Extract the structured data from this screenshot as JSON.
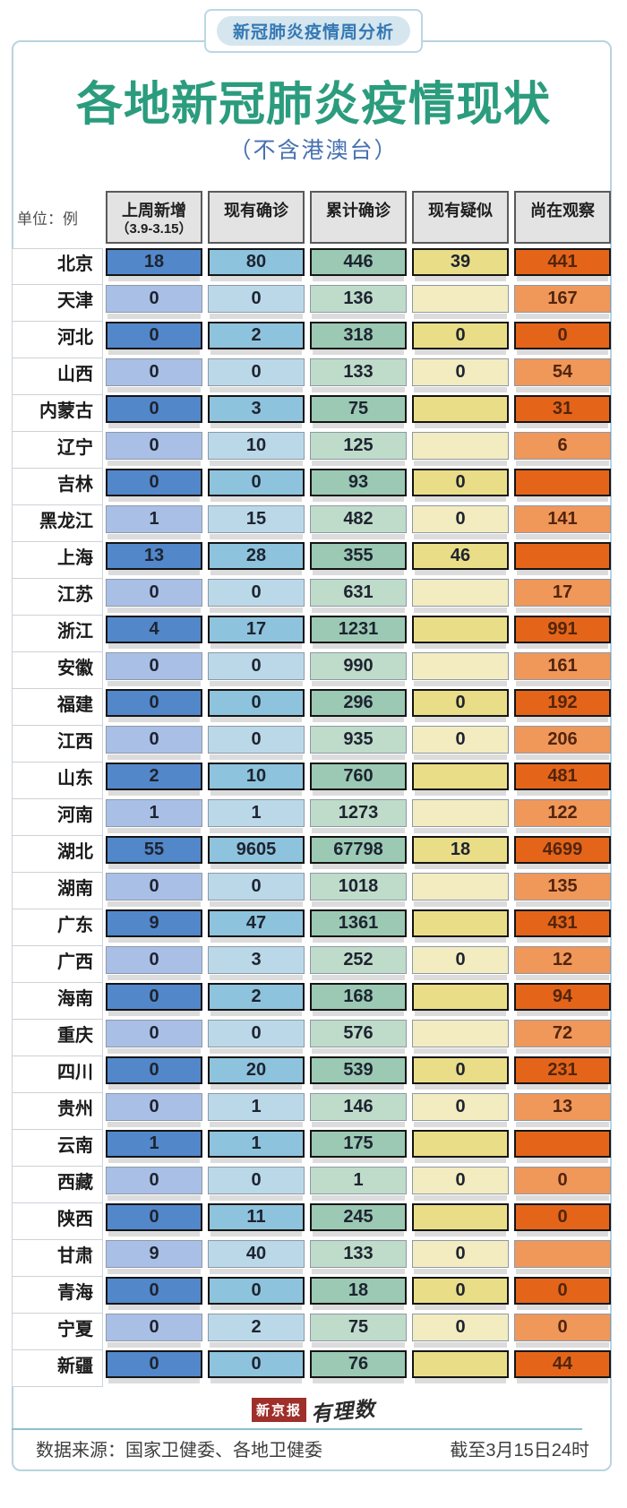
{
  "badge": "新冠肺炎疫情周分析",
  "title": "各地新冠肺炎疫情现状",
  "subtitle": "（不含港澳台）",
  "unit_label": "单位：例",
  "table": {
    "columns": [
      {
        "label": "上周新增",
        "sub": "（3.9-3.15）"
      },
      {
        "label": "现有确诊"
      },
      {
        "label": "累计确诊"
      },
      {
        "label": "现有疑似"
      },
      {
        "label": "尚在观察"
      }
    ],
    "rows": [
      {
        "region": "北京",
        "values": [
          18,
          80,
          446,
          39,
          441
        ]
      },
      {
        "region": "天津",
        "values": [
          0,
          0,
          136,
          null,
          167
        ]
      },
      {
        "region": "河北",
        "values": [
          0,
          2,
          318,
          0,
          0
        ]
      },
      {
        "region": "山西",
        "values": [
          0,
          0,
          133,
          0,
          54
        ]
      },
      {
        "region": "内蒙古",
        "values": [
          0,
          3,
          75,
          null,
          31
        ]
      },
      {
        "region": "辽宁",
        "values": [
          0,
          10,
          125,
          null,
          6
        ]
      },
      {
        "region": "吉林",
        "values": [
          0,
          0,
          93,
          0,
          null
        ]
      },
      {
        "region": "黑龙江",
        "values": [
          1,
          15,
          482,
          0,
          141
        ]
      },
      {
        "region": "上海",
        "values": [
          13,
          28,
          355,
          46,
          null
        ]
      },
      {
        "region": "江苏",
        "values": [
          0,
          0,
          631,
          null,
          17
        ]
      },
      {
        "region": "浙江",
        "values": [
          4,
          17,
          1231,
          null,
          991
        ]
      },
      {
        "region": "安徽",
        "values": [
          0,
          0,
          990,
          null,
          161
        ]
      },
      {
        "region": "福建",
        "values": [
          0,
          0,
          296,
          0,
          192
        ]
      },
      {
        "region": "江西",
        "values": [
          0,
          0,
          935,
          0,
          206
        ]
      },
      {
        "region": "山东",
        "values": [
          2,
          10,
          760,
          null,
          481
        ]
      },
      {
        "region": "河南",
        "values": [
          1,
          1,
          1273,
          null,
          122
        ]
      },
      {
        "region": "湖北",
        "values": [
          55,
          9605,
          67798,
          18,
          4699
        ]
      },
      {
        "region": "湖南",
        "values": [
          0,
          0,
          1018,
          null,
          135
        ]
      },
      {
        "region": "广东",
        "values": [
          9,
          47,
          1361,
          null,
          431
        ]
      },
      {
        "region": "广西",
        "values": [
          0,
          3,
          252,
          0,
          12
        ]
      },
      {
        "region": "海南",
        "values": [
          0,
          2,
          168,
          null,
          94
        ]
      },
      {
        "region": "重庆",
        "values": [
          0,
          0,
          576,
          null,
          72
        ]
      },
      {
        "region": "四川",
        "values": [
          0,
          20,
          539,
          0,
          231
        ]
      },
      {
        "region": "贵州",
        "values": [
          0,
          1,
          146,
          0,
          13
        ]
      },
      {
        "region": "云南",
        "values": [
          1,
          1,
          175,
          null,
          null
        ]
      },
      {
        "region": "西藏",
        "values": [
          0,
          0,
          1,
          0,
          0
        ]
      },
      {
        "region": "陕西",
        "values": [
          0,
          11,
          245,
          null,
          0
        ]
      },
      {
        "region": "甘肃",
        "values": [
          9,
          40,
          133,
          0,
          null
        ]
      },
      {
        "region": "青海",
        "values": [
          0,
          0,
          18,
          0,
          0
        ]
      },
      {
        "region": "宁夏",
        "values": [
          0,
          2,
          75,
          0,
          0
        ]
      },
      {
        "region": "新疆",
        "values": [
          0,
          0,
          76,
          null,
          44
        ]
      }
    ]
  },
  "colors": {
    "dark": [
      "#5287ca",
      "#8ec3dd",
      "#9bc9b4",
      "#e9dd88",
      "#e4651a"
    ],
    "light": [
      "#a9bfe6",
      "#bad8e8",
      "#bfdbca",
      "#f3ecc1",
      "#f0975a"
    ],
    "title_green": "#2b9c7d",
    "subtitle_blue": "#4671b0",
    "badge_blue": "#3478b4",
    "frame_border": "#b9d3df",
    "logo_red": "#9e2f2a"
  },
  "footer": {
    "logo_primary": "新京报",
    "logo_secondary": "有理数",
    "source": "数据来源：国家卫健委、各地卫健委",
    "asof": "截至3月15日24时"
  },
  "chart_data": {
    "type": "table",
    "title": "各地新冠肺炎疫情现状（不含港澳台）",
    "unit": "例",
    "columns": [
      "上周新增（3.9-3.15）",
      "现有确诊",
      "累计确诊",
      "现有疑似",
      "尚在观察"
    ],
    "categories": [
      "北京",
      "天津",
      "河北",
      "山西",
      "内蒙古",
      "辽宁",
      "吉林",
      "黑龙江",
      "上海",
      "江苏",
      "浙江",
      "安徽",
      "福建",
      "江西",
      "山东",
      "河南",
      "湖北",
      "湖南",
      "广东",
      "广西",
      "海南",
      "重庆",
      "四川",
      "贵州",
      "云南",
      "西藏",
      "陕西",
      "甘肃",
      "青海",
      "宁夏",
      "新疆"
    ],
    "series": [
      {
        "name": "上周新增（3.9-3.15）",
        "values": [
          18,
          0,
          0,
          0,
          0,
          0,
          0,
          1,
          13,
          0,
          4,
          0,
          0,
          0,
          2,
          1,
          55,
          0,
          9,
          0,
          0,
          0,
          0,
          0,
          1,
          0,
          0,
          9,
          0,
          0,
          0
        ]
      },
      {
        "name": "现有确诊",
        "values": [
          80,
          0,
          2,
          0,
          3,
          10,
          0,
          15,
          28,
          0,
          17,
          0,
          0,
          0,
          10,
          1,
          9605,
          0,
          47,
          3,
          2,
          0,
          20,
          1,
          1,
          0,
          11,
          40,
          0,
          2,
          0
        ]
      },
      {
        "name": "累计确诊",
        "values": [
          446,
          136,
          318,
          133,
          75,
          125,
          93,
          482,
          355,
          631,
          1231,
          990,
          296,
          935,
          760,
          1273,
          67798,
          1018,
          1361,
          252,
          168,
          576,
          539,
          146,
          175,
          1,
          245,
          133,
          18,
          75,
          76
        ]
      },
      {
        "name": "现有疑似",
        "values": [
          39,
          null,
          0,
          0,
          null,
          null,
          0,
          0,
          46,
          null,
          null,
          null,
          0,
          0,
          null,
          null,
          18,
          null,
          null,
          0,
          null,
          null,
          0,
          0,
          null,
          0,
          null,
          0,
          0,
          0,
          null
        ]
      },
      {
        "name": "尚在观察",
        "values": [
          441,
          167,
          0,
          54,
          31,
          6,
          null,
          141,
          null,
          17,
          991,
          161,
          192,
          206,
          481,
          122,
          4699,
          135,
          431,
          12,
          94,
          72,
          231,
          13,
          null,
          0,
          0,
          null,
          0,
          0,
          44
        ]
      }
    ],
    "as_of": "截至3月15日24时",
    "source": "数据来源：国家卫健委、各地卫健委"
  }
}
